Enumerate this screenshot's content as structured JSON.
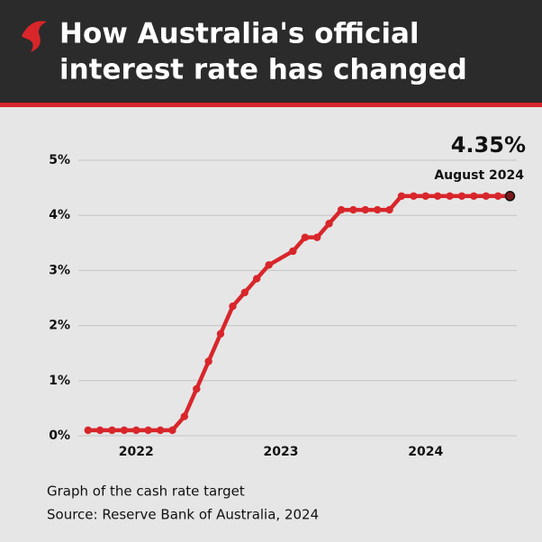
{
  "chart_data": {
    "type": "line",
    "title": [
      "How Australia's official",
      "interest rate has changed"
    ],
    "x": [
      2021.667,
      2021.75,
      2021.833,
      2021.917,
      2022,
      2022.083,
      2022.167,
      2022.25,
      2022.333,
      2022.417,
      2022.5,
      2022.583,
      2022.667,
      2022.75,
      2022.833,
      2022.917,
      2023.083,
      2023.167,
      2023.25,
      2023.333,
      2023.417,
      2023.5,
      2023.583,
      2023.667,
      2023.75,
      2023.833,
      2023.917,
      2024,
      2024.083,
      2024.167,
      2024.25,
      2024.333,
      2024.417,
      2024.5,
      2024.583
    ],
    "values": [
      0.1,
      0.1,
      0.1,
      0.1,
      0.1,
      0.1,
      0.1,
      0.1,
      0.35,
      0.85,
      1.35,
      1.85,
      2.35,
      2.6,
      2.85,
      3.1,
      3.35,
      3.6,
      3.6,
      3.85,
      4.1,
      4.1,
      4.1,
      4.1,
      4.1,
      4.35,
      4.35,
      4.35,
      4.35,
      4.35,
      4.35,
      4.35,
      4.35,
      4.35,
      4.35
    ],
    "color": "#d8262b",
    "xlim": [
      2021.6,
      2024.63
    ],
    "xticks": [
      2022,
      2023,
      2024
    ],
    "ylim": [
      0,
      5
    ],
    "yticks": [
      {
        "value": 0,
        "label": "0%"
      },
      {
        "value": 1,
        "label": "1%"
      },
      {
        "value": 2,
        "label": "2%"
      },
      {
        "value": 3,
        "label": "3%"
      },
      {
        "value": 4,
        "label": "4%"
      },
      {
        "value": 5,
        "label": "5%"
      }
    ],
    "grid": true,
    "annotations": [
      "4.35%",
      "August 2024"
    ],
    "caption": "Graph of the cash rate target",
    "source": "Source: Reserve Bank of Australia, 2024"
  }
}
